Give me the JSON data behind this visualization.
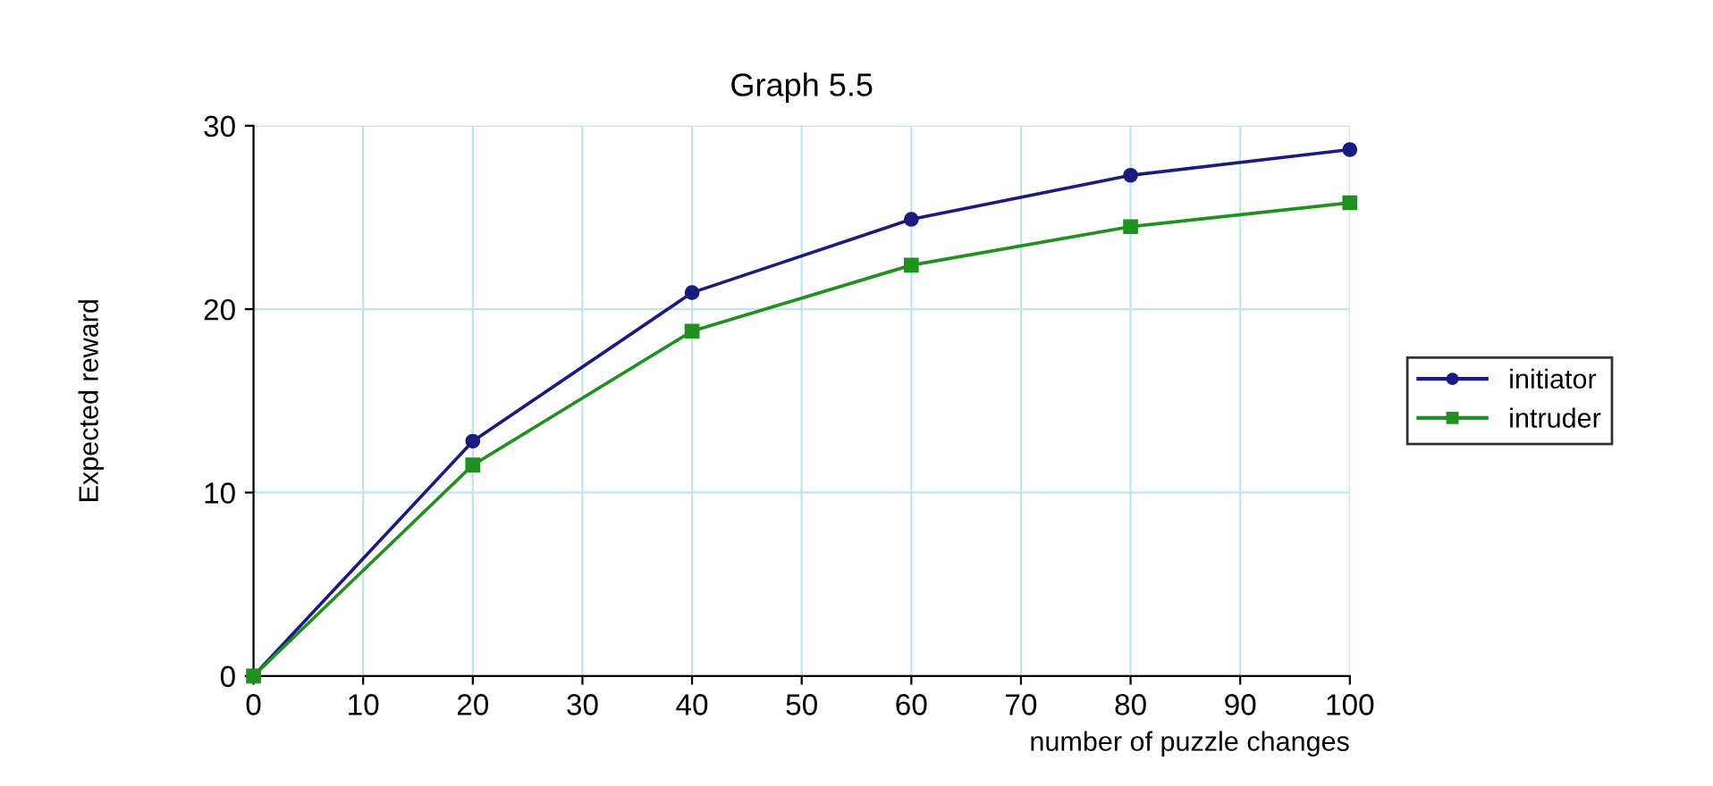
{
  "chart_data": {
    "type": "line",
    "title": "Graph 5.5",
    "xlabel": "number of puzzle changes",
    "ylabel": "Expected reward",
    "x": [
      0,
      20,
      40,
      60,
      80,
      100
    ],
    "series": [
      {
        "name": "initiator",
        "color": "#1a1a80",
        "values": [
          0,
          12.8,
          20.9,
          24.9,
          27.3,
          28.7
        ],
        "marker": "circle"
      },
      {
        "name": "intruder",
        "color": "#209020",
        "values": [
          0,
          11.5,
          18.8,
          22.4,
          24.5,
          25.8
        ],
        "marker": "square"
      }
    ],
    "xlim": [
      0,
      100
    ],
    "ylim": [
      0,
      30
    ],
    "xticks": [
      0,
      10,
      20,
      30,
      40,
      50,
      60,
      70,
      80,
      90,
      100
    ],
    "yticks": [
      0,
      10,
      20,
      30
    ],
    "grid": true,
    "legend": "right",
    "line_style": "solid"
  }
}
